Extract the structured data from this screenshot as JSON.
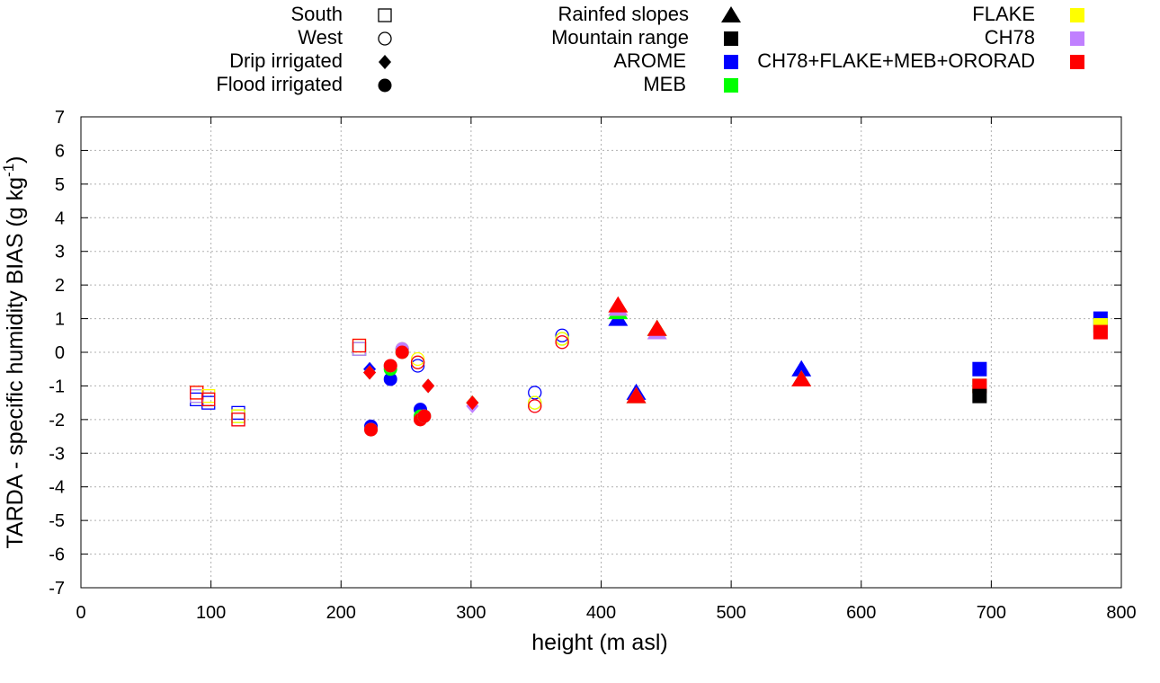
{
  "chart_data": {
    "type": "scatter",
    "xlabel": "height (m asl)",
    "ylabel_main": "TARDA - specific humidity BIAS (g kg",
    "ylabel_sup": "-1",
    "ylabel_close": ")",
    "xlim": [
      0,
      800
    ],
    "ylim": [
      -7,
      7
    ],
    "xticks": [
      0,
      100,
      200,
      300,
      400,
      500,
      600,
      700,
      800
    ],
    "yticks": [
      -7,
      -6,
      -5,
      -4,
      -3,
      -2,
      -1,
      0,
      1,
      2,
      3,
      4,
      5,
      6,
      7
    ],
    "grid": true,
    "legend_sites": [
      {
        "label": "South",
        "marker": "square-open"
      },
      {
        "label": "West",
        "marker": "circle-open"
      },
      {
        "label": "Drip irrigated",
        "marker": "diamond"
      },
      {
        "label": "Flood irrigated",
        "marker": "circle"
      },
      {
        "label": "Rainfed slopes",
        "marker": "triangle"
      },
      {
        "label": "Mountain range",
        "marker": "square"
      }
    ],
    "legend_models": [
      {
        "label": "AROME",
        "color": "#0000ff"
      },
      {
        "label": "MEB",
        "color": "#00ff00"
      },
      {
        "label": "FLAKE",
        "color": "#ffff00"
      },
      {
        "label": "CH78",
        "color": "#c080ff"
      },
      {
        "label": "CH78+FLAKE+MEB+ORORAD",
        "color": "#ff0000"
      }
    ],
    "model_order": [
      "AROME",
      "MEB",
      "FLAKE",
      "CH78",
      "CH78+FLAKE+MEB+ORORAD"
    ],
    "stations": [
      {
        "x": 89,
        "marker": "square-open",
        "values": [
          -1.4,
          -1.3,
          -1.2,
          -1.3,
          -1.2
        ]
      },
      {
        "x": 98,
        "marker": "square-open",
        "values": [
          -1.5,
          -1.4,
          -1.3,
          -1.4,
          -1.4
        ]
      },
      {
        "x": 121,
        "marker": "square-open",
        "values": [
          -1.8,
          -1.9,
          -1.9,
          -2.0,
          -2.0
        ]
      },
      {
        "x": 214,
        "marker": "square-open",
        "values": [
          0.1,
          0.1,
          0.2,
          0.1,
          0.2
        ]
      },
      {
        "x": 222,
        "marker": "diamond",
        "values": [
          -0.5,
          -0.6,
          -0.6,
          -0.6,
          -0.6
        ]
      },
      {
        "x": 223,
        "marker": "circle",
        "values": [
          -2.2,
          -2.3,
          -2.3,
          -2.3,
          -2.3
        ]
      },
      {
        "x": 238,
        "marker": "circle",
        "values": [
          -0.8,
          -0.5,
          -0.4,
          -0.4,
          -0.4
        ]
      },
      {
        "x": 247,
        "marker": "circle",
        "values": [
          0.1,
          0.0,
          0.1,
          0.1,
          0.0
        ]
      },
      {
        "x": 259,
        "marker": "circle-open",
        "values": [
          -0.4,
          -0.3,
          -0.2,
          -0.3,
          -0.3
        ]
      },
      {
        "x": 261,
        "marker": "circle",
        "values": [
          -1.7,
          -1.9,
          -2.0,
          -2.0,
          -2.0
        ]
      },
      {
        "x": 264,
        "marker": "circle",
        "values": [
          -1.9,
          -1.9,
          -1.9,
          -1.9,
          -1.9
        ]
      },
      {
        "x": 267,
        "marker": "diamond",
        "values": [
          -1.0,
          -1.0,
          -1.0,
          -1.0,
          -1.0
        ]
      },
      {
        "x": 301,
        "marker": "diamond",
        "values": [
          -1.5,
          -1.5,
          -1.5,
          -1.6,
          -1.5
        ]
      },
      {
        "x": 349,
        "marker": "circle-open",
        "values": [
          -1.2,
          -1.5,
          -1.5,
          -1.6,
          -1.6
        ]
      },
      {
        "x": 370,
        "marker": "circle-open",
        "values": [
          0.5,
          0.4,
          0.4,
          0.3,
          0.3
        ]
      },
      {
        "x": 413,
        "marker": "triangle",
        "values": [
          1.0,
          1.2,
          1.3,
          1.3,
          1.4
        ]
      },
      {
        "x": 427,
        "marker": "triangle",
        "values": [
          -1.2,
          -1.3,
          -1.3,
          -1.3,
          -1.3
        ]
      },
      {
        "x": 443,
        "marker": "triangle",
        "values": [
          0.7,
          0.7,
          0.7,
          0.6,
          0.7
        ]
      },
      {
        "x": 554,
        "marker": "triangle",
        "values": [
          -0.5,
          -0.8,
          -0.8,
          -0.8,
          -0.8
        ]
      },
      {
        "x": 691,
        "marker": "square",
        "values": [
          -0.5,
          -1.0,
          -1.0,
          -1.0,
          -1.0
        ]
      },
      {
        "x": 784,
        "marker": "square",
        "values": [
          1.0,
          0.8,
          0.8,
          0.6,
          0.6
        ]
      }
    ],
    "mountain_extra": [
      {
        "x": 691,
        "y": -1.3,
        "color": "#000000"
      }
    ],
    "black_color": "#000000"
  }
}
